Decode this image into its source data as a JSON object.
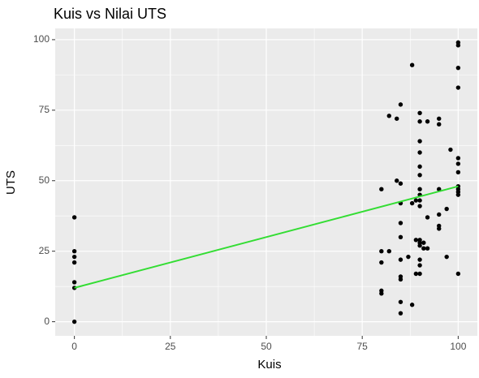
{
  "chart_data": {
    "type": "scatter",
    "title": "Kuis vs Nilai UTS",
    "x_label": "Kuis",
    "y_label": "UTS",
    "xlim": [
      -5,
      105
    ],
    "ylim": [
      -5,
      104
    ],
    "xticks": [
      0,
      25,
      50,
      75,
      100
    ],
    "yticks": [
      0,
      25,
      50,
      75,
      100
    ],
    "grid": true,
    "series": [
      {
        "color": "#000000",
        "x": [
          0,
          0,
          0,
          0,
          0,
          0,
          0,
          80,
          80,
          80,
          80,
          80,
          82,
          82,
          84,
          84,
          85,
          85,
          85,
          85,
          85,
          85,
          85,
          85,
          85,
          85,
          87,
          88,
          88,
          88,
          89,
          89,
          89,
          90,
          90,
          90,
          90,
          90,
          90,
          90,
          90,
          90,
          90,
          90,
          90,
          90,
          90,
          90,
          90,
          91,
          91,
          92,
          92,
          92,
          95,
          95,
          95,
          95,
          95,
          95,
          97,
          97,
          98,
          100,
          100,
          100,
          100,
          100,
          100,
          100,
          100,
          100,
          100,
          100,
          100
        ],
        "values": [
          37,
          25,
          23,
          21,
          14,
          12,
          0,
          47,
          25,
          21,
          11,
          10,
          73,
          25,
          72,
          50,
          77,
          49,
          42,
          35,
          30,
          22,
          16,
          15,
          7,
          3,
          23,
          91,
          42,
          6,
          43,
          29,
          17,
          74,
          71,
          64,
          60,
          55,
          52,
          47,
          45,
          43,
          41,
          29,
          28,
          27,
          22,
          20,
          17,
          26,
          28,
          71,
          37,
          26,
          72,
          70,
          47,
          38,
          34,
          33,
          40,
          23,
          61,
          99,
          98,
          90,
          83,
          58,
          56,
          53,
          48,
          47,
          46,
          45,
          17
        ]
      }
    ],
    "trend_line": {
      "color": "#33dd33",
      "x": [
        0,
        100
      ],
      "values": [
        12,
        48
      ]
    }
  }
}
